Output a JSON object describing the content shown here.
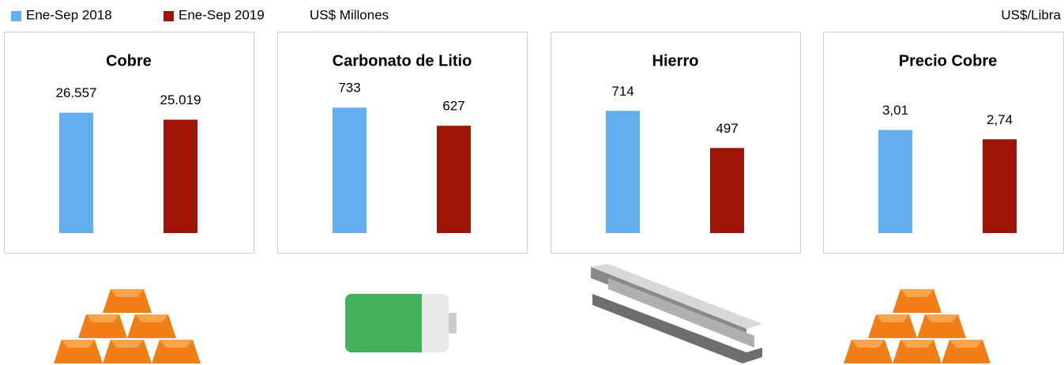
{
  "legend": [
    {
      "name": "Ene-Sep 2018",
      "color": "#63aeee"
    },
    {
      "name": "Ene-Sep 2019",
      "color": "#9e1508"
    }
  ],
  "unit_left": "US$ Millones",
  "unit_right": "US$/Libra",
  "chart_data": [
    {
      "type": "bar",
      "title": "Cobre",
      "values": [
        26557,
        25019
      ],
      "value_labels": [
        "26.557",
        "25.019"
      ],
      "ylim": [
        0,
        34000
      ]
    },
    {
      "type": "bar",
      "title": "Carbonato de Litio",
      "values": [
        733,
        627
      ],
      "ylim": [
        0,
        900
      ]
    },
    {
      "type": "bar",
      "title": "Hierro",
      "values": [
        714,
        497
      ],
      "ylim": [
        0,
        900
      ]
    },
    {
      "type": "bar",
      "title": "Precio Cobre",
      "values": [
        3.01,
        2.74
      ],
      "value_labels": [
        "3,01",
        "2,74"
      ],
      "ylim": [
        0,
        4.5
      ]
    }
  ]
}
